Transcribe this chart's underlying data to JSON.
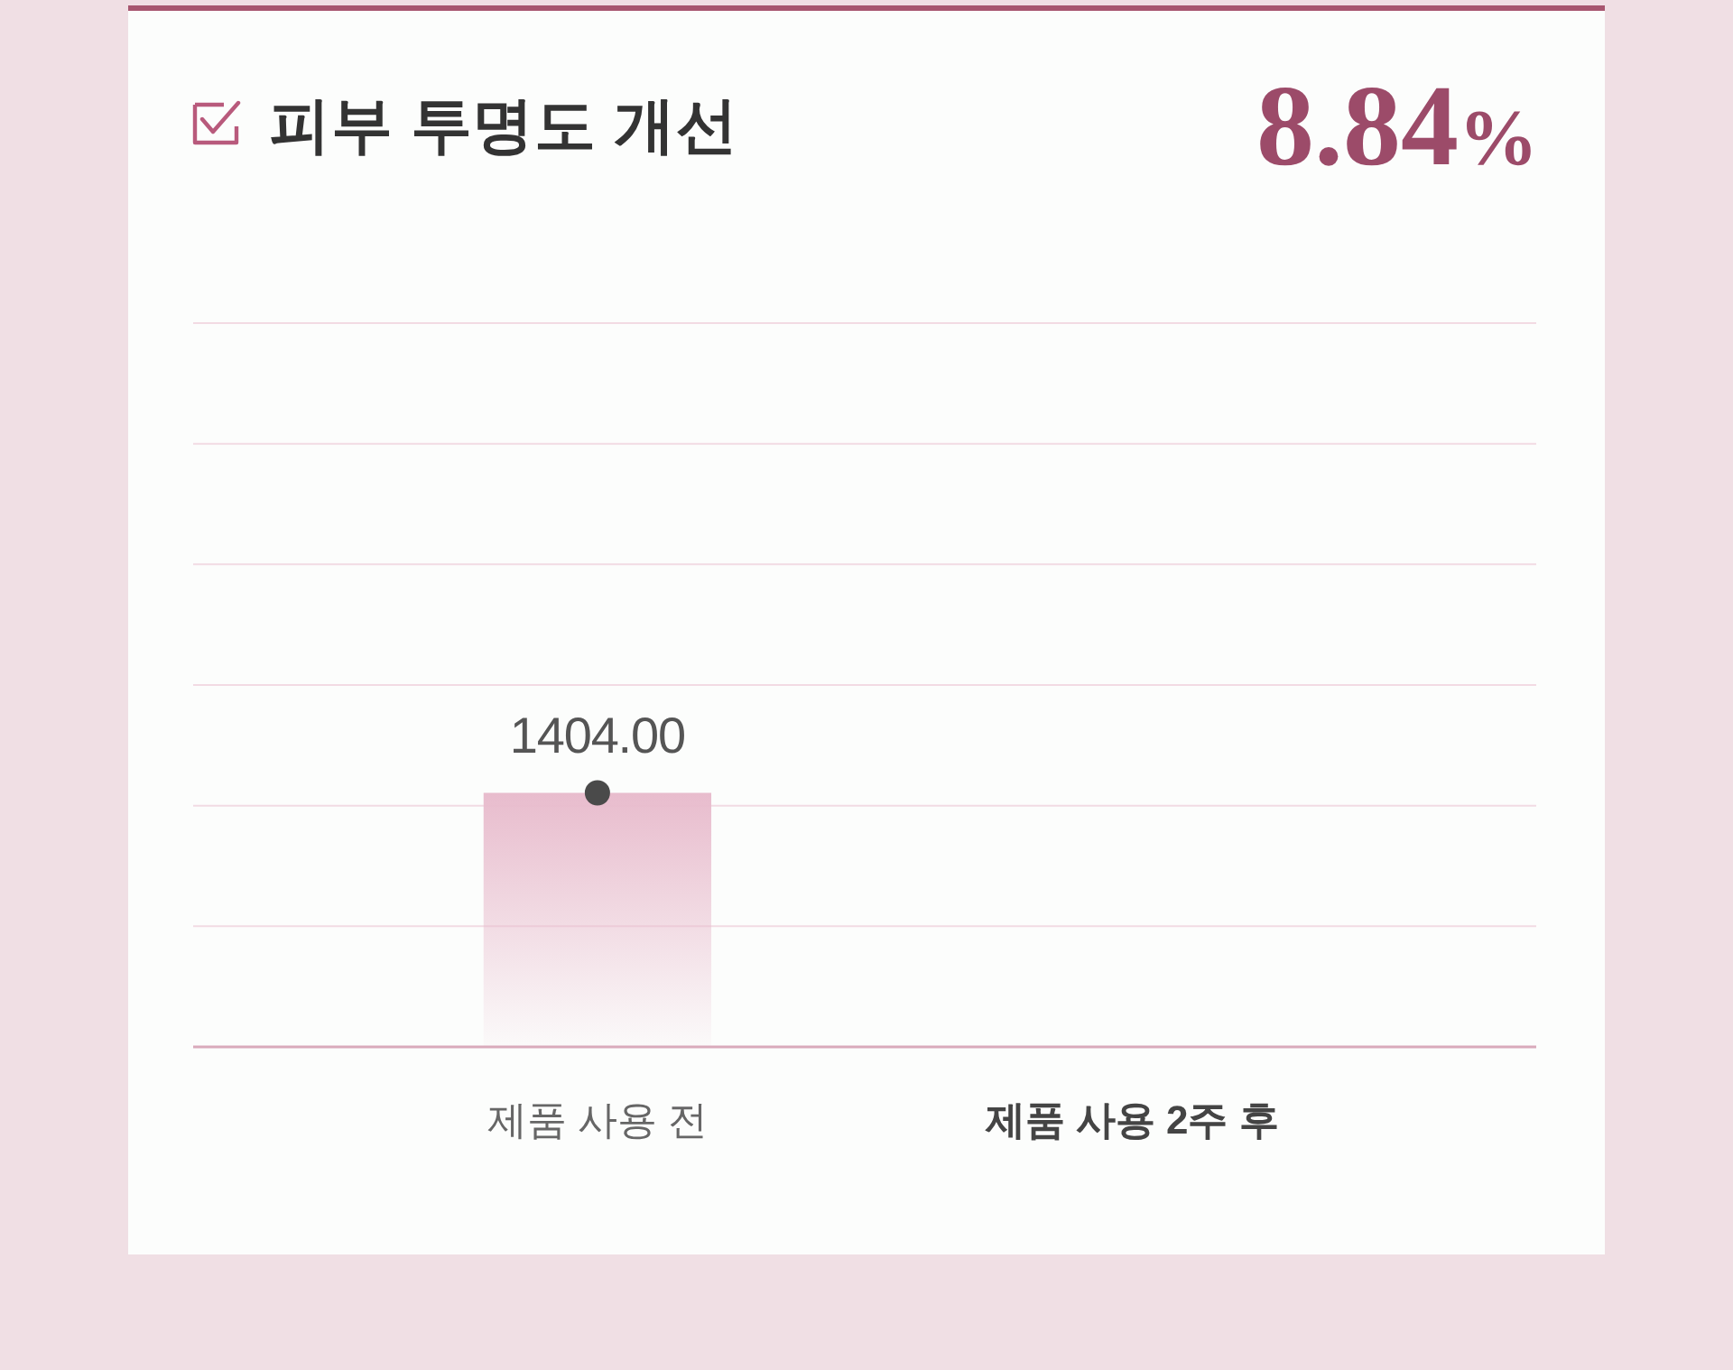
{
  "chart_data": {
    "type": "bar",
    "title": "피부 투명도 개선",
    "annotations": [
      "8.84%"
    ],
    "categories": [
      "제품 사용 전",
      "제품 사용 2주 후"
    ],
    "series": [
      {
        "color": "#e8bccd",
        "values": [
          1404,
          null
        ]
      },
      {
        "type": "line",
        "color": "#4a4a4a",
        "values": [
          1404,
          null
        ],
        "value_labels": [
          "1404.00",
          null
        ]
      }
    ],
    "marker": "circle",
    "ylim": [
      0,
      4000
    ],
    "yticks": [
      {
        "value": 0,
        "label": null
      },
      {
        "value": 667,
        "label": null
      },
      {
        "value": 1333,
        "label": null
      },
      {
        "value": 2000,
        "label": null
      },
      {
        "value": 2667,
        "label": null
      },
      {
        "value": 3333,
        "label": null
      },
      {
        "value": 4000,
        "label": null
      }
    ],
    "grid": "y",
    "tick_labels": "x"
  }
}
